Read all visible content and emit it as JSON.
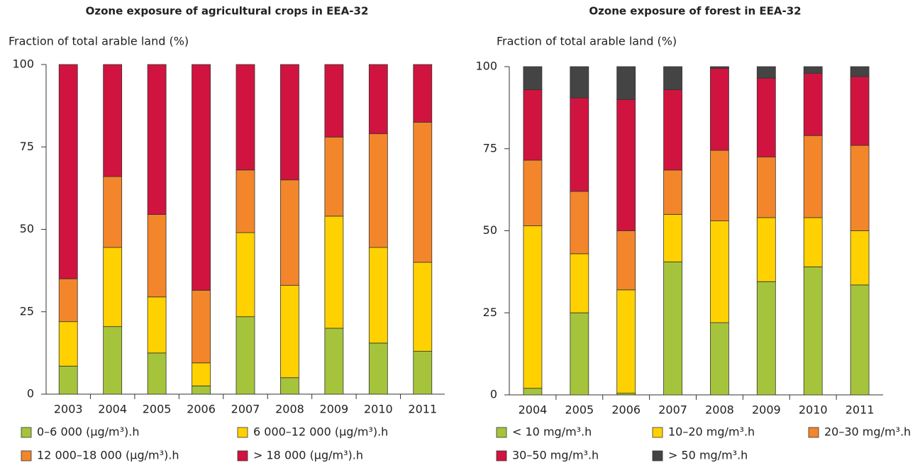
{
  "chart_data": [
    {
      "type": "stacked_bar",
      "title": "Ozone exposure of agricultural crops in EEA-32",
      "ylabel": "Fraction of total arable land (%)",
      "categories": [
        "2003",
        "2004",
        "2005",
        "2006",
        "2007",
        "2008",
        "2009",
        "2010",
        "2011"
      ],
      "ylim": [
        0,
        100
      ],
      "yticks": [
        0,
        25,
        50,
        75,
        100
      ],
      "series": [
        {
          "name": "0–6 000 (µg/m³).h",
          "color": "#a6c43b",
          "values": [
            8.5,
            20.5,
            12.5,
            2.5,
            23.5,
            5,
            20,
            15.5,
            13
          ]
        },
        {
          "name": "6 000–12 000 (µg/m³).h",
          "color": "#ffd100",
          "values": [
            13.5,
            24,
            17,
            7,
            25.5,
            28,
            34,
            29,
            27
          ]
        },
        {
          "name": "12 000–18 000 (µg/m³).h",
          "color": "#f3862a",
          "values": [
            13,
            21.5,
            25,
            22,
            19,
            32,
            24,
            34.5,
            42.5
          ]
        },
        {
          "name": "> 18 000 (µg/m³).h",
          "color": "#d0143f",
          "values": [
            65,
            34,
            45.5,
            68.5,
            32,
            35,
            22,
            21,
            17.5
          ]
        }
      ]
    },
    {
      "type": "stacked_bar",
      "title": "Ozone exposure of forest in EEA-32",
      "ylabel": "Fraction of total arable land (%)",
      "categories": [
        "2004",
        "2005",
        "2006",
        "2007",
        "2008",
        "2009",
        "2010",
        "2011"
      ],
      "ylim": [
        0,
        100
      ],
      "yticks": [
        0,
        25,
        50,
        75,
        100
      ],
      "series": [
        {
          "name": "< 10 mg/m³.h",
          "color": "#a6c43b",
          "values": [
            2,
            25,
            0.5,
            40.5,
            22,
            34.5,
            39,
            33.5
          ]
        },
        {
          "name": "10–20 mg/m³.h",
          "color": "#ffd100",
          "values": [
            49.5,
            18,
            31.5,
            14.5,
            31,
            19.5,
            15,
            16.5
          ]
        },
        {
          "name": "20–30 mg/m³.h",
          "color": "#f3862a",
          "values": [
            20,
            19,
            18,
            13.5,
            21.5,
            18.5,
            25,
            26
          ]
        },
        {
          "name": "30–50 mg/m³.h",
          "color": "#d0143f",
          "values": [
            21.5,
            28.5,
            40,
            24.5,
            25,
            24,
            19,
            21
          ]
        },
        {
          "name": "> 50 mg/m³.h",
          "color": "#444444",
          "values": [
            7,
            9.5,
            10,
            7,
            0.5,
            3.5,
            2,
            3
          ]
        }
      ]
    }
  ]
}
